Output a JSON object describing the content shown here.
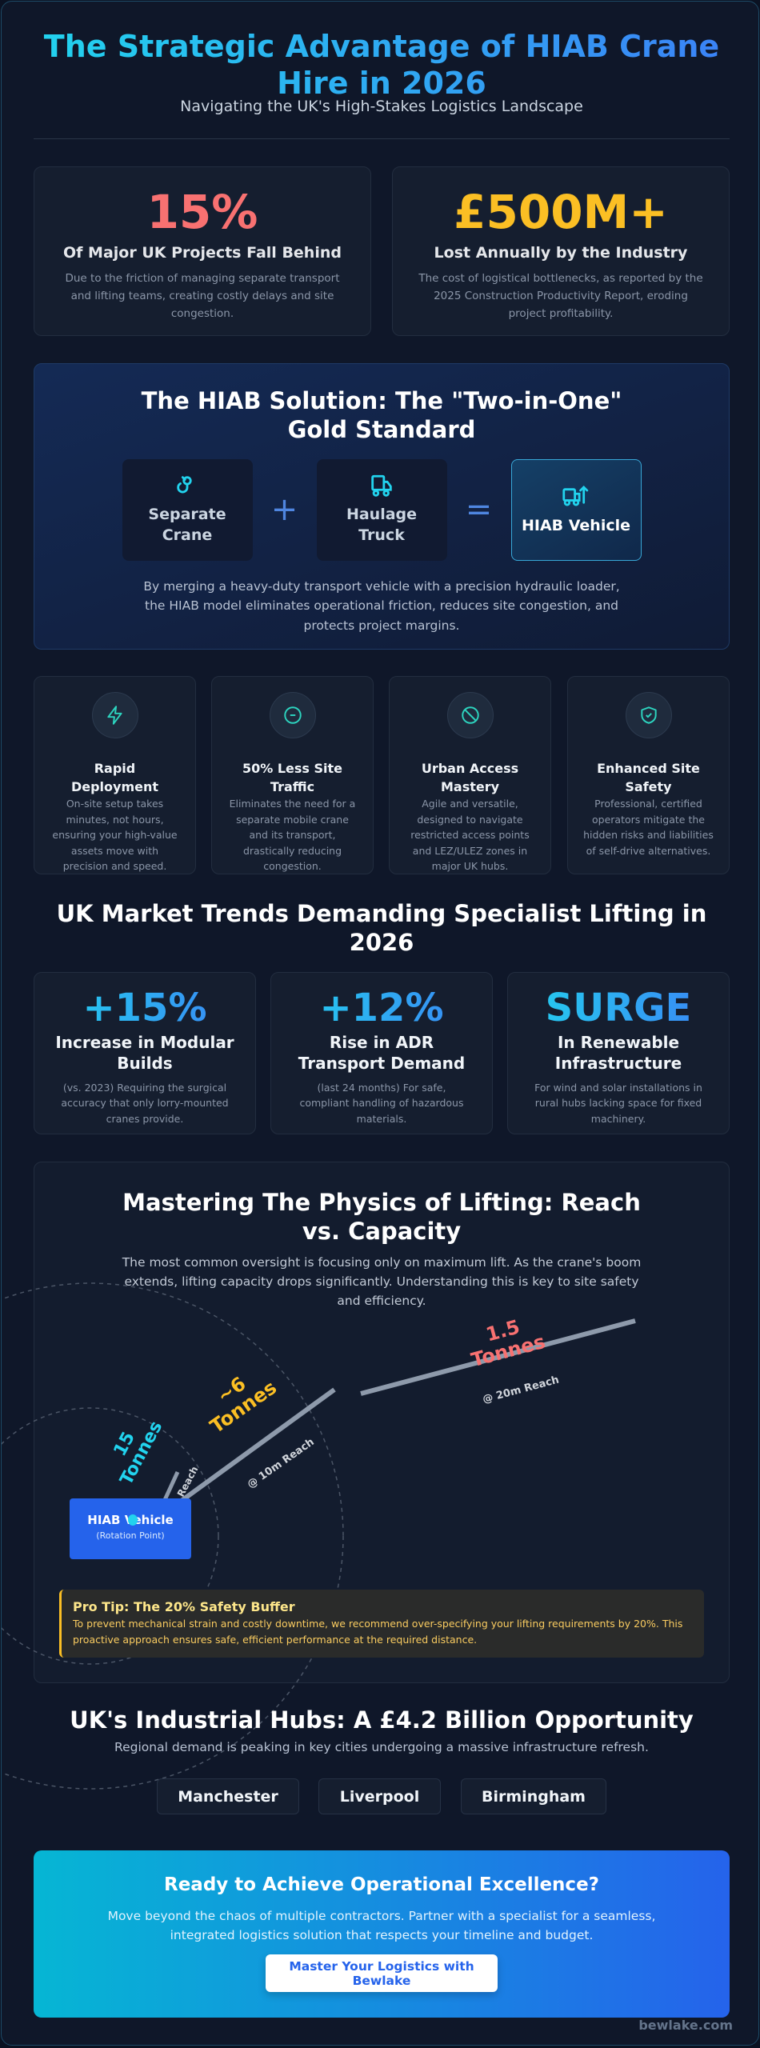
{
  "header": {
    "title": "The Strategic Advantage of HIAB Crane Hire in 2026",
    "subtitle": "Navigating the UK's High-Stakes Logistics Landscape"
  },
  "stats": [
    {
      "value": "15%",
      "label": "Of Major UK Projects Fall Behind",
      "desc": "Due to the friction of managing separate transport and lifting teams, creating costly delays and site congestion.",
      "color": "#f87171"
    },
    {
      "value": "£500M+",
      "label": "Lost Annually by the Industry",
      "desc": "The cost of logistical bottlenecks, as reported by the 2025 Construction Productivity Report, eroding project profitability.",
      "color": "#fbbf24"
    }
  ],
  "solution": {
    "title": "The HIAB Solution: The \"Two-in-One\" Gold Standard",
    "items": [
      {
        "label": "Separate Crane",
        "icon": "crane-hook-icon"
      },
      {
        "label": "Haulage Truck",
        "icon": "truck-icon"
      },
      {
        "label": "HIAB Vehicle",
        "icon": "truck-lift-icon"
      }
    ],
    "plus": "+",
    "equals": "=",
    "desc": "By merging a heavy-duty transport vehicle with a precision hydraulic loader, the HIAB model eliminates operational friction, reduces site congestion, and protects project margins."
  },
  "features": [
    {
      "title": "Rapid Deployment",
      "desc": "On-site setup takes minutes, not hours, ensuring your high-value assets move with precision and speed.",
      "icon": "lightning-icon"
    },
    {
      "title": "50% Less Site Traffic",
      "desc": "Eliminates the need for a separate mobile crane and its transport, drastically reducing congestion.",
      "icon": "minus-circle-icon"
    },
    {
      "title": "Urban Access Mastery",
      "desc": "Agile and versatile, designed to navigate restricted access points and LEZ/ULEZ zones in major UK hubs.",
      "icon": "ban-icon"
    },
    {
      "title": "Enhanced Site Safety",
      "desc": "Professional, certified operators mitigate the hidden risks and liabilities of self-drive alternatives.",
      "icon": "shield-check-icon"
    }
  ],
  "trends": {
    "title": "UK Market Trends Demanding Specialist Lifting in 2026",
    "items": [
      {
        "value": "+15%",
        "label": "Increase in Modular Builds",
        "desc": "(vs. 2023) Requiring the surgical accuracy that only lorry-mounted cranes provide."
      },
      {
        "value": "+12%",
        "label": "Rise in ADR Transport Demand",
        "desc": "(last 24 months) For safe, compliant handling of hazardous materials."
      },
      {
        "value": "SURGE",
        "label": "In Renewable Infrastructure",
        "desc": "For wind and solar installations in rural hubs lacking space for fixed machinery."
      }
    ]
  },
  "physics": {
    "title": "Mastering The Physics of Lifting: Reach vs. Capacity",
    "desc": "The most common oversight is focusing only on maximum lift. As the crane's boom extends, lifting capacity drops significantly. Understanding this is key to site safety and efficiency.",
    "vehicle": {
      "label": "HIAB Vehicle",
      "sub": "(Rotation Point)"
    },
    "capacities": [
      {
        "load": "15 Tonnes",
        "reach": "Reach",
        "color": "#22d3ee"
      },
      {
        "load": "~6 Tonnes",
        "reach": "@ 10m Reach",
        "color": "#fbbf24"
      },
      {
        "load": "1.5 Tonnes",
        "reach": "@ 20m Reach",
        "color": "#f87171"
      }
    ],
    "tip": {
      "title": "Pro Tip: The 20% Safety Buffer",
      "text": "To prevent mechanical strain and costly downtime, we recommend over-specifying your lifting requirements by 20%. This proactive approach ensures safe, efficient performance at the required distance."
    }
  },
  "hubs": {
    "title": "UK's Industrial Hubs: A £4.2 Billion Opportunity",
    "subtitle": "Regional demand is peaking in key cities undergoing a massive infrastructure refresh.",
    "cities": [
      "Manchester",
      "Liverpool",
      "Birmingham"
    ]
  },
  "cta": {
    "title": "Ready to Achieve Operational Excellence?",
    "text": "Move beyond the chaos of multiple contractors. Partner with a specialist for a seamless, integrated logistics solution that respects your timeline and budget.",
    "button": "Master Your Logistics with Bewlake"
  },
  "watermark": "bewlake.com",
  "footer": "bewlake.com"
}
